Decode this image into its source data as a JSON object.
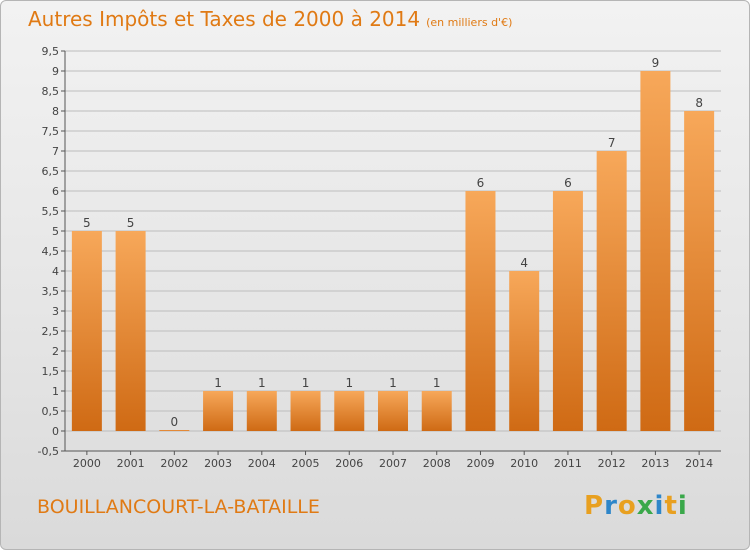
{
  "header": {
    "title": "Autres Impôts et Taxes de 2000 à 2014",
    "subtitle": "(en milliers d'€)"
  },
  "footer": {
    "commune": "BOUILLANCOURT-LA-BATAILLE",
    "logo_letters": [
      "P",
      "r",
      "o",
      "x",
      "i",
      "t",
      "i"
    ],
    "logo_colors": [
      "#e8a020",
      "#2e86c9",
      "#e8a020",
      "#3aa84a",
      "#2e86c9",
      "#e8a020",
      "#3aa84a"
    ]
  },
  "colors": {
    "bar_light": "#f7a85a",
    "bar_dark": "#cf6a14",
    "text_orange": "#e07a14"
  },
  "chart_data": {
    "type": "bar",
    "categories": [
      "2000",
      "2001",
      "2002",
      "2003",
      "2004",
      "2005",
      "2006",
      "2007",
      "2008",
      "2009",
      "2010",
      "2011",
      "2012",
      "2013",
      "2014"
    ],
    "values": [
      5,
      5,
      0,
      1,
      1,
      1,
      1,
      1,
      1,
      6,
      4,
      6,
      7,
      9,
      8
    ],
    "data_labels": [
      "5",
      "5",
      "0",
      "1",
      "1",
      "1",
      "1",
      "1",
      "1",
      "6",
      "4",
      "6",
      "7",
      "9",
      "8"
    ],
    "title": "Autres Impôts et Taxes de 2000 à 2014",
    "subtitle": "(en milliers d'€)",
    "y_ticks": [
      -0.5,
      0,
      0.5,
      1,
      1.5,
      2,
      2.5,
      3,
      3.5,
      4,
      4.5,
      5,
      5.5,
      6,
      6.5,
      7,
      7.5,
      8,
      8.5,
      9,
      9.5
    ],
    "y_tick_labels": [
      "-0,5",
      "0",
      "0,5",
      "1",
      "1,5",
      "2",
      "2,5",
      "3",
      "3,5",
      "4",
      "4,5",
      "5",
      "5,5",
      "6",
      "6,5",
      "7",
      "7,5",
      "8",
      "8,5",
      "9",
      "9,5"
    ],
    "ylim": [
      -0.5,
      9.5
    ],
    "grid": true
  }
}
